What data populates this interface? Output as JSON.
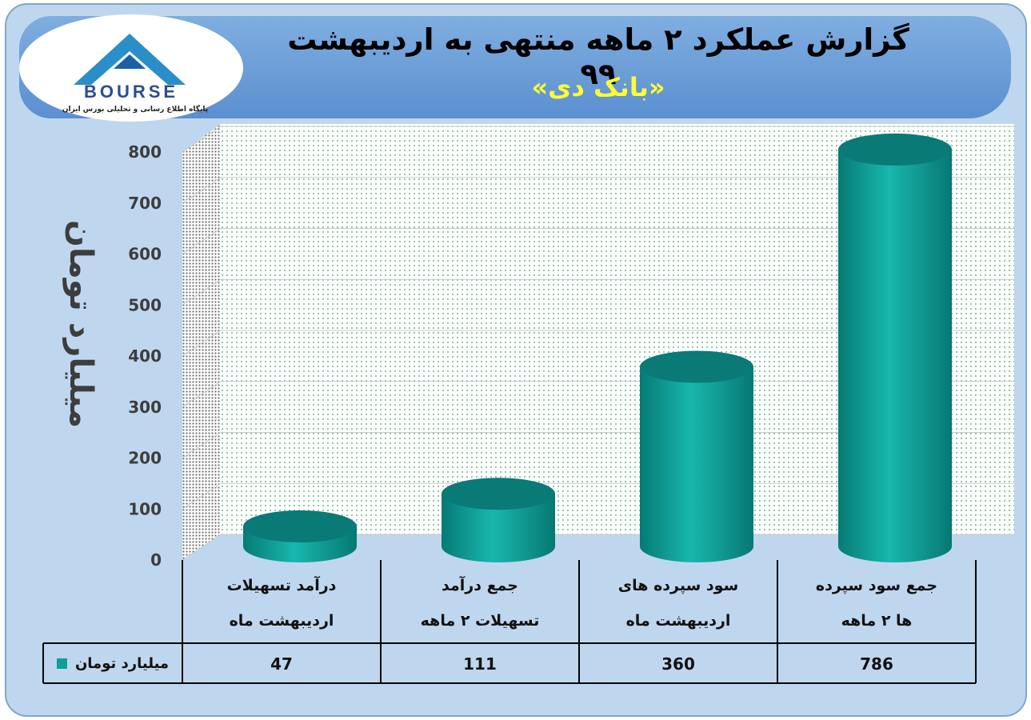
{
  "header": {
    "title": "گزارش عملکرد ۲ ماهه منتهی به اردیبهشت ۹۹",
    "subtitle": "«بانک دی»"
  },
  "logo": {
    "text": "BOURSE",
    "mark": "24",
    "tagline": "پایگاه اطلاع رسانی و تحلیلی بورس ایران"
  },
  "colors": {
    "background": "#bfd7ee",
    "banner": "#5b8fd0",
    "title": "#000000",
    "subtitle": "#ffff33",
    "bar": "#0e9f98",
    "bar_top": "#0a7a76"
  },
  "chart_data": {
    "type": "bar",
    "style": "3d-cylinder",
    "categories": [
      [
        "جمع سود سپرده",
        "ها ۲ ماهه"
      ],
      [
        "سود سپرده های",
        "اردیبهشت ماه"
      ],
      [
        "جمع درآمد",
        "تسهیلات ۲ ماهه"
      ],
      [
        "درآمد تسهیلات",
        "اردیبهشت ماه"
      ]
    ],
    "series": [
      {
        "name": "میلیارد تومان",
        "values": [
          786,
          360,
          111,
          47
        ]
      }
    ],
    "ylabel": "میلیارد تومان",
    "ylim": [
      0,
      800
    ],
    "yticks": [
      0,
      100,
      200,
      300,
      400,
      500,
      600,
      700,
      800
    ],
    "grid": true,
    "data_table": true,
    "legend_position": "table-left"
  }
}
